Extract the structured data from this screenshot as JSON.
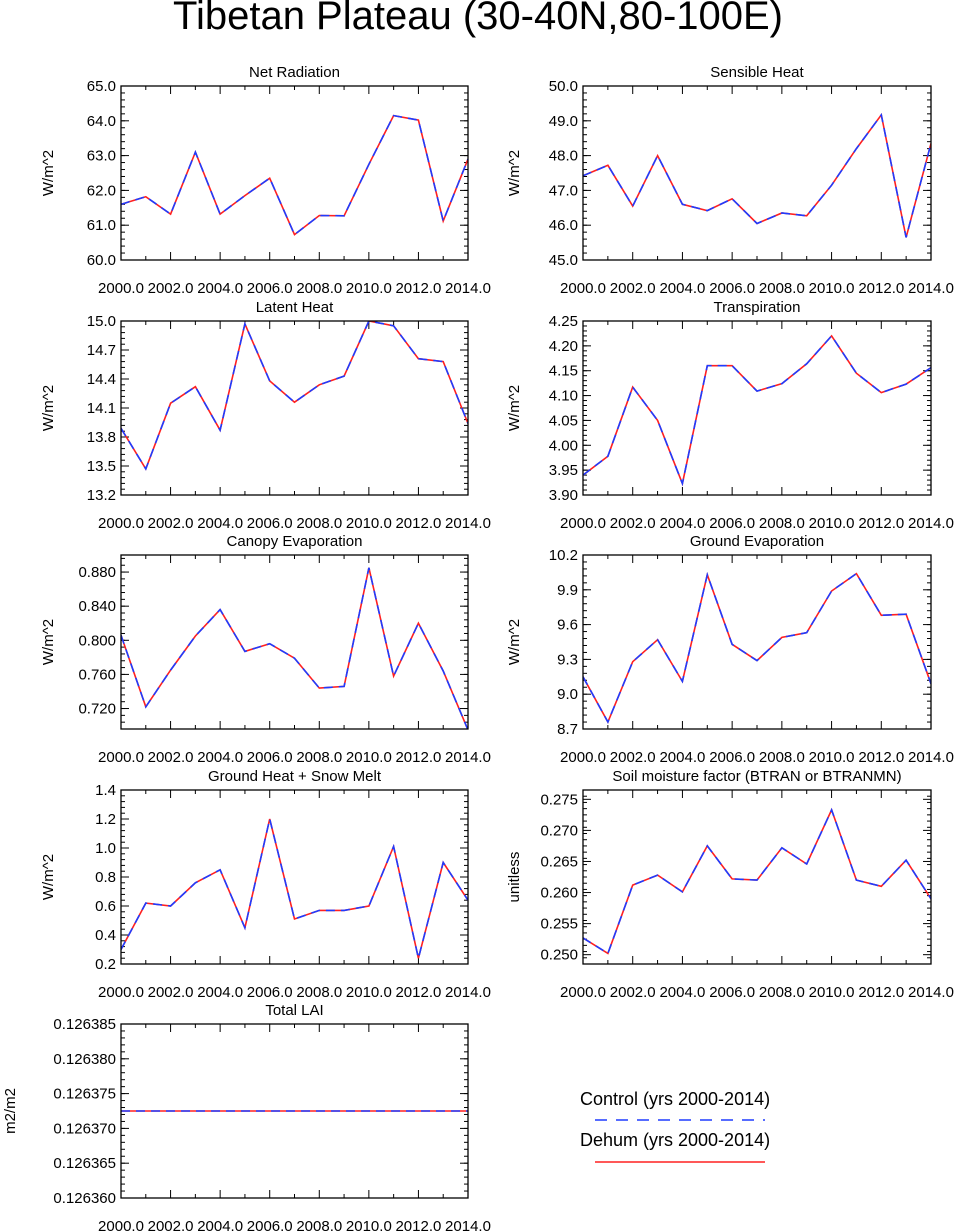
{
  "figure": {
    "title": "Tibetan Plateau (30-40N,80-100E)",
    "legend": {
      "control_label": "Control (yrs 2000-2014)",
      "dehum_label": "Dehum (yrs 2000-2014)",
      "control_color": "#1e3cff",
      "dehum_color": "#ff2020",
      "placement": "bottom-right"
    }
  },
  "chart_data": [
    {
      "type": "line",
      "title": "Net Radiation",
      "ylabel": "W/m^2",
      "xlim": [
        2000,
        2014
      ],
      "ylim": [
        60.0,
        65.0
      ],
      "yticks": [
        "65.0",
        "64.0",
        "63.0",
        "62.0",
        "61.0",
        "60.0"
      ],
      "ytick_values": [
        65.0,
        64.0,
        63.0,
        62.0,
        61.0,
        60.0
      ],
      "xticks": [
        "2000.0",
        "2002.0",
        "2004.0",
        "2006.0",
        "2008.0",
        "2010.0",
        "2012.0",
        "2014.0"
      ],
      "x": [
        2000,
        2001,
        2002,
        2003,
        2004,
        2005,
        2006,
        2007,
        2008,
        2009,
        2010,
        2011,
        2012,
        2013,
        2014
      ],
      "series": [
        {
          "name": "Control (yrs 2000-2014)",
          "values": [
            61.6,
            61.82,
            61.32,
            63.1,
            61.32,
            61.85,
            62.35,
            60.73,
            61.28,
            61.27,
            62.75,
            64.15,
            64.02,
            61.12,
            62.9
          ]
        },
        {
          "name": "Dehum (yrs 2000-2014)",
          "values": [
            61.6,
            61.82,
            61.32,
            63.1,
            61.32,
            61.85,
            62.35,
            60.73,
            61.28,
            61.27,
            62.75,
            64.15,
            64.02,
            61.12,
            62.9
          ]
        }
      ]
    },
    {
      "type": "line",
      "title": "Sensible Heat",
      "ylabel": "W/m^2",
      "xlim": [
        2000,
        2014
      ],
      "ylim": [
        45.0,
        50.0
      ],
      "yticks": [
        "50.0",
        "49.0",
        "48.0",
        "47.0",
        "46.0",
        "45.0"
      ],
      "ytick_values": [
        50.0,
        49.0,
        48.0,
        47.0,
        46.0,
        45.0
      ],
      "xticks": [
        "2000.0",
        "2002.0",
        "2004.0",
        "2006.0",
        "2008.0",
        "2010.0",
        "2012.0",
        "2014.0"
      ],
      "x": [
        2000,
        2001,
        2002,
        2003,
        2004,
        2005,
        2006,
        2007,
        2008,
        2009,
        2010,
        2011,
        2012,
        2013,
        2014
      ],
      "series": [
        {
          "name": "Control (yrs 2000-2014)",
          "values": [
            47.42,
            47.72,
            46.55,
            48.0,
            46.6,
            46.42,
            46.76,
            46.05,
            46.35,
            46.27,
            47.15,
            48.2,
            49.17,
            45.65,
            48.35
          ]
        },
        {
          "name": "Dehum (yrs 2000-2014)",
          "values": [
            47.42,
            47.72,
            46.55,
            48.0,
            46.6,
            46.42,
            46.76,
            46.05,
            46.35,
            46.27,
            47.15,
            48.2,
            49.17,
            45.65,
            48.35
          ]
        }
      ]
    },
    {
      "type": "line",
      "title": "Latent Heat",
      "ylabel": "W/m^2",
      "xlim": [
        2000,
        2014
      ],
      "ylim": [
        13.2,
        15.0
      ],
      "yticks": [
        "15.0",
        "14.7",
        "14.4",
        "14.1",
        "13.8",
        "13.5",
        "13.2"
      ],
      "ytick_values": [
        15.0,
        14.7,
        14.4,
        14.1,
        13.8,
        13.5,
        13.2
      ],
      "xticks": [
        "2000.0",
        "2002.0",
        "2004.0",
        "2006.0",
        "2008.0",
        "2010.0",
        "2012.0",
        "2014.0"
      ],
      "x": [
        2000,
        2001,
        2002,
        2003,
        2004,
        2005,
        2006,
        2007,
        2008,
        2009,
        2010,
        2011,
        2012,
        2013,
        2014
      ],
      "series": [
        {
          "name": "Control (yrs 2000-2014)",
          "values": [
            13.89,
            13.47,
            14.15,
            14.32,
            13.87,
            14.97,
            14.38,
            14.16,
            14.34,
            14.43,
            15.0,
            14.95,
            14.61,
            14.58,
            13.94
          ]
        },
        {
          "name": "Dehum (yrs 2000-2014)",
          "values": [
            13.89,
            13.47,
            14.15,
            14.32,
            13.87,
            14.97,
            14.38,
            14.16,
            14.34,
            14.43,
            15.0,
            14.95,
            14.61,
            14.58,
            13.94
          ]
        }
      ]
    },
    {
      "type": "line",
      "title": "Transpiration",
      "ylabel": "W/m^2",
      "xlim": [
        2000,
        2014
      ],
      "ylim": [
        3.9,
        4.25
      ],
      "yticks": [
        "4.25",
        "4.20",
        "4.15",
        "4.10",
        "4.05",
        "4.00",
        "3.95",
        "3.90"
      ],
      "ytick_values": [
        4.25,
        4.2,
        4.15,
        4.1,
        4.05,
        4.0,
        3.95,
        3.9
      ],
      "xticks": [
        "2000.0",
        "2002.0",
        "2004.0",
        "2006.0",
        "2008.0",
        "2010.0",
        "2012.0",
        "2014.0"
      ],
      "x": [
        2000,
        2001,
        2002,
        2003,
        2004,
        2005,
        2006,
        2007,
        2008,
        2009,
        2010,
        2011,
        2012,
        2013,
        2014
      ],
      "series": [
        {
          "name": "Control (yrs 2000-2014)",
          "values": [
            3.94,
            3.978,
            4.117,
            4.05,
            3.923,
            4.16,
            4.16,
            4.109,
            4.124,
            4.164,
            4.22,
            4.145,
            4.106,
            4.123,
            4.156
          ]
        },
        {
          "name": "Dehum (yrs 2000-2014)",
          "values": [
            3.94,
            3.978,
            4.117,
            4.05,
            3.923,
            4.16,
            4.16,
            4.109,
            4.124,
            4.164,
            4.22,
            4.145,
            4.106,
            4.123,
            4.156
          ]
        }
      ]
    },
    {
      "type": "line",
      "title": "Canopy Evaporation",
      "ylabel": "W/m^2",
      "xlim": [
        2000,
        2014
      ],
      "ylim": [
        0.696,
        0.9
      ],
      "yticks": [
        "0.880",
        "0.840",
        "0.800",
        "0.760",
        "0.720"
      ],
      "ytick_values": [
        0.88,
        0.84,
        0.8,
        0.76,
        0.72
      ],
      "xticks": [
        "2000.0",
        "2002.0",
        "2004.0",
        "2006.0",
        "2008.0",
        "2010.0",
        "2012.0",
        "2014.0"
      ],
      "x": [
        2000,
        2001,
        2002,
        2003,
        2004,
        2005,
        2006,
        2007,
        2008,
        2009,
        2010,
        2011,
        2012,
        2013,
        2014
      ],
      "series": [
        {
          "name": "Control (yrs 2000-2014)",
          "values": [
            0.806,
            0.722,
            0.765,
            0.805,
            0.836,
            0.787,
            0.796,
            0.779,
            0.744,
            0.746,
            0.885,
            0.758,
            0.82,
            0.764,
            0.695
          ]
        },
        {
          "name": "Dehum (yrs 2000-2014)",
          "values": [
            0.806,
            0.722,
            0.765,
            0.805,
            0.836,
            0.787,
            0.796,
            0.779,
            0.744,
            0.746,
            0.885,
            0.758,
            0.82,
            0.764,
            0.695
          ]
        }
      ]
    },
    {
      "type": "line",
      "title": "Ground Evaporation",
      "ylabel": "W/m^2",
      "xlim": [
        2000,
        2014
      ],
      "ylim": [
        8.7,
        10.2
      ],
      "yticks": [
        "10.2",
        "9.9",
        "9.6",
        "9.3",
        "9.0",
        "8.7"
      ],
      "ytick_values": [
        10.2,
        9.9,
        9.6,
        9.3,
        9.0,
        8.7
      ],
      "xticks": [
        "2000.0",
        "2002.0",
        "2004.0",
        "2006.0",
        "2008.0",
        "2010.0",
        "2012.0",
        "2014.0"
      ],
      "x": [
        2000,
        2001,
        2002,
        2003,
        2004,
        2005,
        2006,
        2007,
        2008,
        2009,
        2010,
        2011,
        2012,
        2013,
        2014
      ],
      "series": [
        {
          "name": "Control (yrs 2000-2014)",
          "values": [
            9.15,
            8.76,
            9.28,
            9.47,
            9.11,
            10.03,
            9.43,
            9.29,
            9.49,
            9.53,
            9.89,
            10.04,
            9.68,
            9.69,
            9.09
          ]
        },
        {
          "name": "Dehum (yrs 2000-2014)",
          "values": [
            9.15,
            8.76,
            9.28,
            9.47,
            9.11,
            10.03,
            9.43,
            9.29,
            9.49,
            9.53,
            9.89,
            10.04,
            9.68,
            9.69,
            9.09
          ]
        }
      ]
    },
    {
      "type": "line",
      "title": "Ground Heat + Snow Melt",
      "ylabel": "W/m^2",
      "xlim": [
        2000,
        2014
      ],
      "ylim": [
        0.2,
        1.4
      ],
      "yticks": [
        "1.4",
        "1.2",
        "1.0",
        "0.8",
        "0.6",
        "0.4",
        "0.2"
      ],
      "ytick_values": [
        1.4,
        1.2,
        1.0,
        0.8,
        0.6,
        0.4,
        0.2
      ],
      "xticks": [
        "2000.0",
        "2002.0",
        "2004.0",
        "2006.0",
        "2008.0",
        "2010.0",
        "2012.0",
        "2014.0"
      ],
      "x": [
        2000,
        2001,
        2002,
        2003,
        2004,
        2005,
        2006,
        2007,
        2008,
        2009,
        2010,
        2011,
        2012,
        2013,
        2014
      ],
      "series": [
        {
          "name": "Control (yrs 2000-2014)",
          "values": [
            0.3,
            0.62,
            0.6,
            0.76,
            0.85,
            0.45,
            1.2,
            0.51,
            0.57,
            0.57,
            0.6,
            1.01,
            0.24,
            0.9,
            0.64
          ]
        },
        {
          "name": "Dehum (yrs 2000-2014)",
          "values": [
            0.3,
            0.62,
            0.6,
            0.76,
            0.85,
            0.45,
            1.2,
            0.51,
            0.57,
            0.57,
            0.6,
            1.01,
            0.24,
            0.9,
            0.64
          ]
        }
      ]
    },
    {
      "type": "line",
      "title": "Soil moisture factor (BTRAN or BTRANMN)",
      "ylabel": "unitless",
      "xlim": [
        2000,
        2014
      ],
      "ylim": [
        0.2485,
        0.2765
      ],
      "yticks": [
        "0.275",
        "0.270",
        "0.265",
        "0.260",
        "0.255",
        "0.250"
      ],
      "ytick_values": [
        0.275,
        0.27,
        0.265,
        0.26,
        0.255,
        0.25
      ],
      "xticks": [
        "2000.0",
        "2002.0",
        "2004.0",
        "2006.0",
        "2008.0",
        "2010.0",
        "2012.0",
        "2014.0"
      ],
      "x": [
        2000,
        2001,
        2002,
        2003,
        2004,
        2005,
        2006,
        2007,
        2008,
        2009,
        2010,
        2011,
        2012,
        2013,
        2014
      ],
      "series": [
        {
          "name": "Control (yrs 2000-2014)",
          "values": [
            0.2527,
            0.2502,
            0.2612,
            0.2628,
            0.2601,
            0.2675,
            0.2622,
            0.262,
            0.2672,
            0.2646,
            0.2733,
            0.262,
            0.261,
            0.2652,
            0.259
          ]
        },
        {
          "name": "Dehum (yrs 2000-2014)",
          "values": [
            0.2527,
            0.2502,
            0.2612,
            0.2628,
            0.2601,
            0.2675,
            0.2622,
            0.262,
            0.2672,
            0.2646,
            0.2733,
            0.262,
            0.261,
            0.2652,
            0.259
          ]
        }
      ]
    },
    {
      "type": "line",
      "title": "Total LAI",
      "ylabel": "m2/m2",
      "xlim": [
        2000,
        2014
      ],
      "ylim": [
        0.12636,
        0.126385
      ],
      "yticks": [
        "0.126385",
        "0.126380",
        "0.126375",
        "0.126370",
        "0.126365",
        "0.126360"
      ],
      "ytick_values": [
        0.126385,
        0.12638,
        0.126375,
        0.12637,
        0.126365,
        0.12636
      ],
      "xticks": [
        "2000.0",
        "2002.0",
        "2004.0",
        "2006.0",
        "2008.0",
        "2010.0",
        "2012.0",
        "2014.0"
      ],
      "x": [
        2000,
        2001,
        2002,
        2003,
        2004,
        2005,
        2006,
        2007,
        2008,
        2009,
        2010,
        2011,
        2012,
        2013,
        2014
      ],
      "series": [
        {
          "name": "Control (yrs 2000-2014)",
          "values": [
            0.1263725,
            0.1263725,
            0.1263725,
            0.1263725,
            0.1263725,
            0.1263725,
            0.1263725,
            0.1263725,
            0.1263725,
            0.1263725,
            0.1263725,
            0.1263725,
            0.1263725,
            0.1263725,
            0.1263725
          ]
        },
        {
          "name": "Dehum (yrs 2000-2014)",
          "values": [
            0.1263725,
            0.1263725,
            0.1263725,
            0.1263725,
            0.1263725,
            0.1263725,
            0.1263725,
            0.1263725,
            0.1263725,
            0.1263725,
            0.1263725,
            0.1263725,
            0.1263725,
            0.1263725,
            0.1263725
          ]
        }
      ]
    }
  ]
}
